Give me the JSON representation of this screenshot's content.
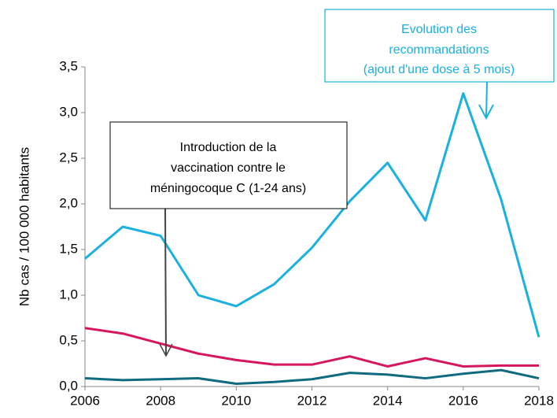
{
  "chart_data": {
    "type": "line",
    "y_label": "Nb cas / 100 000 habitants",
    "x": [
      2006,
      2007,
      2008,
      2009,
      2010,
      2011,
      2012,
      2013,
      2014,
      2015,
      2016,
      2017,
      2018
    ],
    "series": [
      {
        "color": "#1ab0e0",
        "values": [
          1.4,
          1.75,
          1.65,
          1.0,
          0.88,
          1.12,
          1.52,
          2.03,
          2.45,
          1.82,
          3.21,
          2.05,
          0.54
        ]
      },
      {
        "color": "#d6175f",
        "values": [
          0.64,
          0.58,
          0.47,
          0.36,
          0.29,
          0.24,
          0.24,
          0.33,
          0.22,
          0.31,
          0.22,
          0.23,
          0.23
        ]
      },
      {
        "color": "#0e6b80",
        "values": [
          0.09,
          0.07,
          0.08,
          0.09,
          0.03,
          0.05,
          0.08,
          0.15,
          0.13,
          0.09,
          0.14,
          0.18,
          0.09
        ]
      }
    ],
    "xlim": [
      2006,
      2018
    ],
    "xticks": [
      2006,
      2008,
      2010,
      2012,
      2014,
      2016,
      2018
    ],
    "ylim": [
      0,
      3.5
    ],
    "yticks": [
      {
        "value": 0,
        "label": "0,0"
      },
      {
        "value": 0.5,
        "label": "0,5"
      },
      {
        "value": 1,
        "label": "1,0"
      },
      {
        "value": 1.5,
        "label": "1,5"
      },
      {
        "value": 2,
        "label": "2,0"
      },
      {
        "value": 2.5,
        "label": "2,5"
      },
      {
        "value": 3,
        "label": "3,0"
      },
      {
        "value": 3.5,
        "label": "3,5"
      }
    ],
    "annotations": [
      {
        "lines": [
          "Introduction de la",
          "vaccination contre le",
          "méningocoque C (1-24 ans)"
        ]
      },
      {
        "lines": [
          "Evolution des",
          "recommandations",
          "(ajout d'une dose à 5 mois)"
        ]
      }
    ]
  }
}
